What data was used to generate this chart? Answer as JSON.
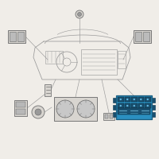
{
  "bg_color": "#f0ede8",
  "line_color": "#999999",
  "comp_face": "#d8d5d0",
  "comp_edge": "#777777",
  "dark": "#666666",
  "highlight_fill": "#2b8fc0",
  "highlight_edge": "#1a5e80",
  "highlight_dark": "#1a4f6e",
  "figsize": [
    2.0,
    2.0
  ],
  "dpi": 100
}
